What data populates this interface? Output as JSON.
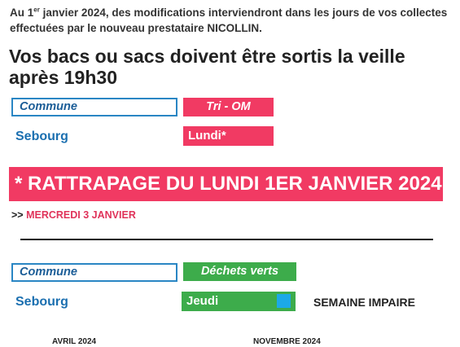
{
  "intro": {
    "part1": "Au 1",
    "sup": "er",
    "part2": " janvier 2024, des modifications interviendront dans les jours de vos collectes effectuées par le nouveau prestataire NICOLLIN."
  },
  "headline": "Vos bacs ou sacs doivent être sortis la veille après 19h30",
  "table_om": {
    "col_label": "Commune",
    "col_badge": "Tri - OM",
    "town": "Sebourg",
    "day": "Lundi*"
  },
  "banner": "* RATTRAPAGE DU LUNDI 1ER JANVIER 2024",
  "subnote": {
    "arrows": ">>",
    "date": "MERCREDI 3 JANVIER"
  },
  "table_green": {
    "col_label": "Commune",
    "col_badge": "Déchets verts",
    "town": "Sebourg",
    "day": "Jeudi",
    "week_note": "SEMAINE IMPAIRE"
  },
  "months": [
    "AVRIL 2024",
    "NOVEMBRE 2024"
  ],
  "colors": {
    "pink": "#f13a63",
    "green": "#3dac4b",
    "blue_border": "#2a86c4",
    "blue_text": "#1b6fb0",
    "week_square": "#1ca9e6"
  }
}
